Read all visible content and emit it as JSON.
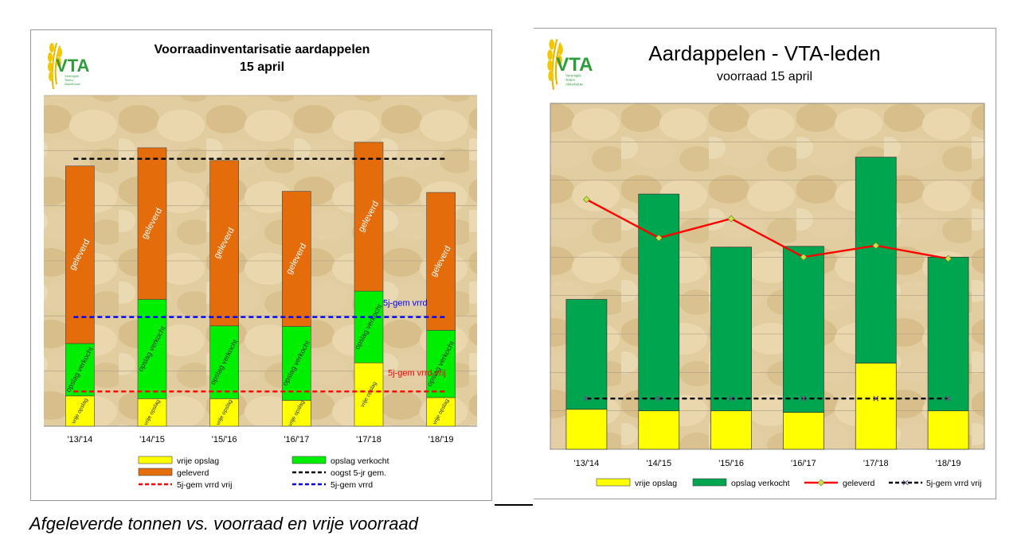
{
  "left_chart": {
    "title_line1": "Voorraadinventarisatie aardappelen",
    "title_line2": "15 april",
    "logo_text": "VTA",
    "logo_subtext": [
      "Verenigde",
      "Telers",
      "Akkerbouw"
    ],
    "seg_labels": {
      "vrij": "vrije opslag",
      "verkocht": "opslag verkocht",
      "geleverd": "geleverd"
    },
    "line_labels": {
      "blue": "5j-gem vrrd",
      "red": "5j-gem vrrd vrij"
    },
    "legend": [
      "vrije opslag",
      "opslag verkocht",
      "geleverd",
      "oogst 5-jr gem.",
      "5j-gem vrrd vrij",
      "5j-gem vrrd"
    ]
  },
  "right_chart": {
    "title": "Aardappelen - VTA-leden",
    "subtitle": "voorraad 15 april",
    "logo_text": "VTA",
    "logo_subtext": [
      "Verenigde",
      "Telers",
      "Akkerbouw"
    ],
    "legend": [
      "vrije opslag",
      "opslag verkocht",
      "geleverd",
      "5j-gem vrrd vrij"
    ]
  },
  "caption": "Afgeleverde tonnen vs. voorraad en vrije voorraad",
  "colors": {
    "vrij": "#ffff00",
    "verkocht_left": "#00ee00",
    "verkocht_right": "#00a550",
    "geleverd": "#e46c0a",
    "red_line": "#ff0000",
    "blue_line": "#0000ff",
    "black_line": "#000000",
    "background_tone": "#e2cda0"
  },
  "chart_data": [
    {
      "type": "bar",
      "stacked": true,
      "categories": [
        "'13/'14",
        "'14/'15",
        "'15/'16",
        "'16/'17",
        "'17/'18",
        "'18/'19"
      ],
      "series": [
        {
          "name": "vrije opslag",
          "values": [
            0.55,
            0.5,
            0.5,
            0.47,
            1.15,
            0.52
          ]
        },
        {
          "name": "opslag verkocht",
          "values": [
            0.95,
            1.8,
            1.32,
            1.34,
            1.3,
            1.22
          ]
        },
        {
          "name": "geleverd",
          "values": [
            3.22,
            2.75,
            3.0,
            2.45,
            2.7,
            2.5
          ]
        }
      ],
      "lines": [
        {
          "name": "oogst 5-jr gem.",
          "value": 4.85
        },
        {
          "name": "5j-gem vrrd",
          "value": 1.98
        },
        {
          "name": "5j-gem vrrd vrij",
          "value": 0.63
        }
      ],
      "ylim": [
        0,
        6
      ],
      "grid": true,
      "legend_position": "bottom"
    },
    {
      "type": "bar",
      "stacked": true,
      "categories": [
        "'13/'14",
        "'14/'15",
        "'15/'16",
        "'16/'17",
        "'17/'18",
        "'18/'19"
      ],
      "series": [
        {
          "name": "vrije opslag",
          "values": [
            0.52,
            0.5,
            0.5,
            0.48,
            1.12,
            0.5
          ]
        },
        {
          "name": "opslag verkocht",
          "values": [
            1.43,
            2.82,
            2.13,
            2.16,
            2.68,
            2.0
          ]
        }
      ],
      "lines": [
        {
          "name": "geleverd",
          "type": "line",
          "values": [
            3.25,
            2.75,
            3.0,
            2.5,
            2.65,
            2.48
          ]
        },
        {
          "name": "5j-gem vrrd vrij",
          "value": 0.66
        }
      ],
      "ylim": [
        0,
        4.5
      ],
      "grid": true,
      "legend_position": "bottom"
    }
  ]
}
